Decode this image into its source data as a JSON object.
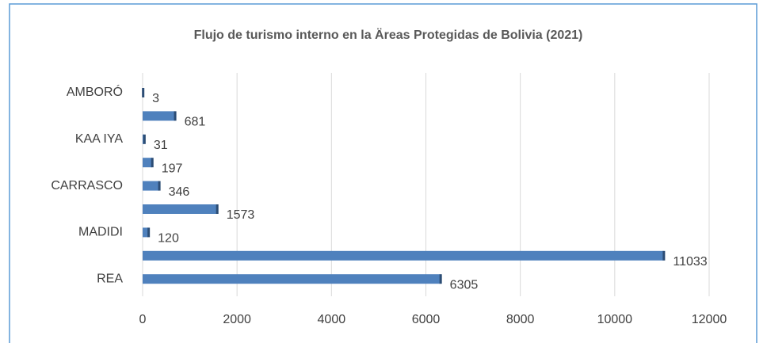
{
  "chart_data": {
    "type": "bar",
    "orientation": "horizontal",
    "title": "Flujo de turismo interno en la Äreas Protegidas de Bolivia (2021)",
    "categories": [
      "AMBORÓ",
      null,
      "KAA IYA",
      null,
      "CARRASCO",
      null,
      "MADIDI",
      null,
      "REA"
    ],
    "values": [
      3,
      681,
      31,
      197,
      346,
      1573,
      120,
      11033,
      6305
    ],
    "color": "#4f81bd",
    "xlim": [
      0,
      12000
    ],
    "xticks": [
      0,
      2000,
      4000,
      6000,
      8000,
      10000,
      12000
    ],
    "grid": true
  }
}
